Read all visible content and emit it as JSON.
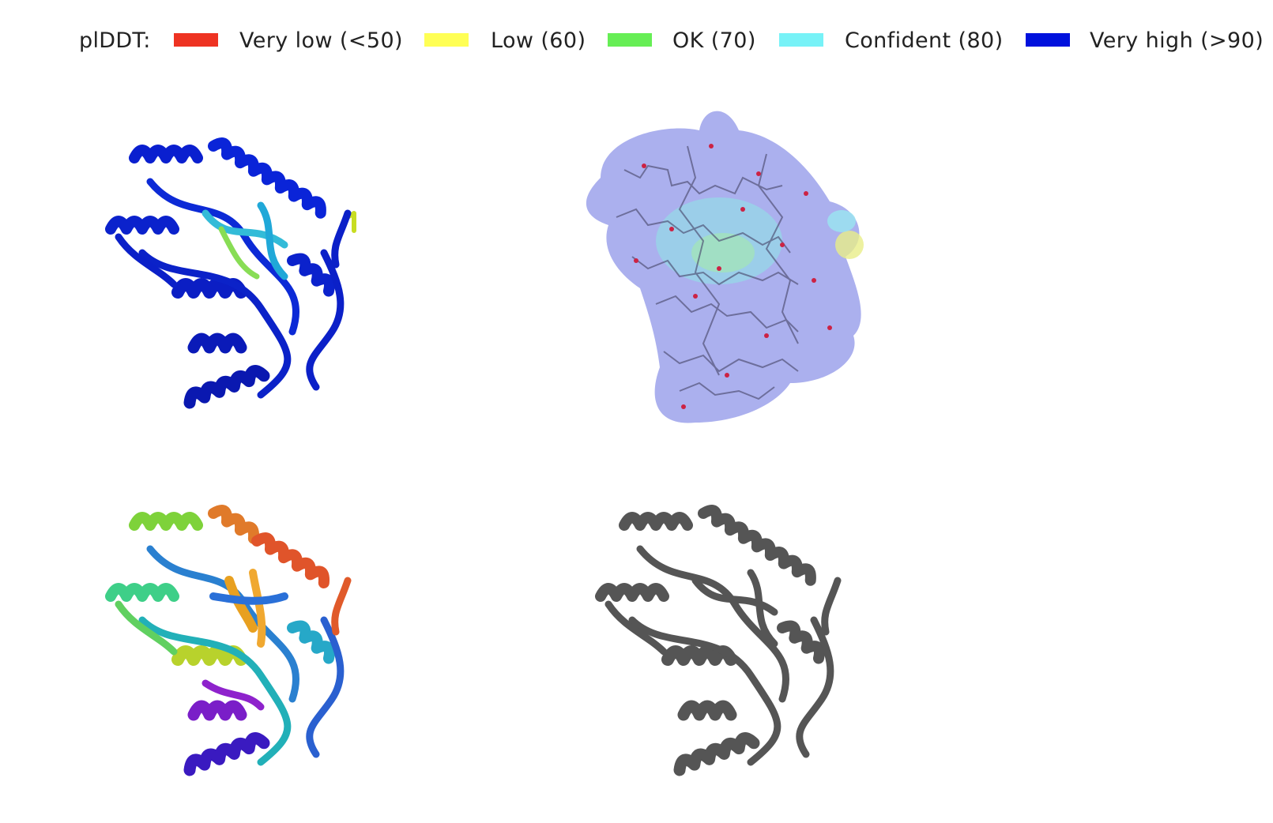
{
  "legend": {
    "title": "plDDT:",
    "items": [
      {
        "label": "Very low (<50)",
        "color": "#ee3322"
      },
      {
        "label": "Low (60)",
        "color": "#ffff55"
      },
      {
        "label": "OK (70)",
        "color": "#66ee55"
      },
      {
        "label": "Confident (80)",
        "color": "#77f2f7"
      },
      {
        "label": "Very high (>90)",
        "color": "#0011dd"
      }
    ]
  },
  "panels": [
    {
      "name": "cartoon-colored-by-plddt",
      "style": "cartoon",
      "coloring": "plDDT"
    },
    {
      "name": "sticks-and-surface-colored-by-plddt",
      "style": "sticks+surface",
      "coloring": "plDDT"
    },
    {
      "name": "cartoon-rainbow",
      "style": "cartoon",
      "coloring": "rainbow N-to-C"
    },
    {
      "name": "cartoon-gray",
      "style": "cartoon",
      "coloring": "gray"
    }
  ]
}
